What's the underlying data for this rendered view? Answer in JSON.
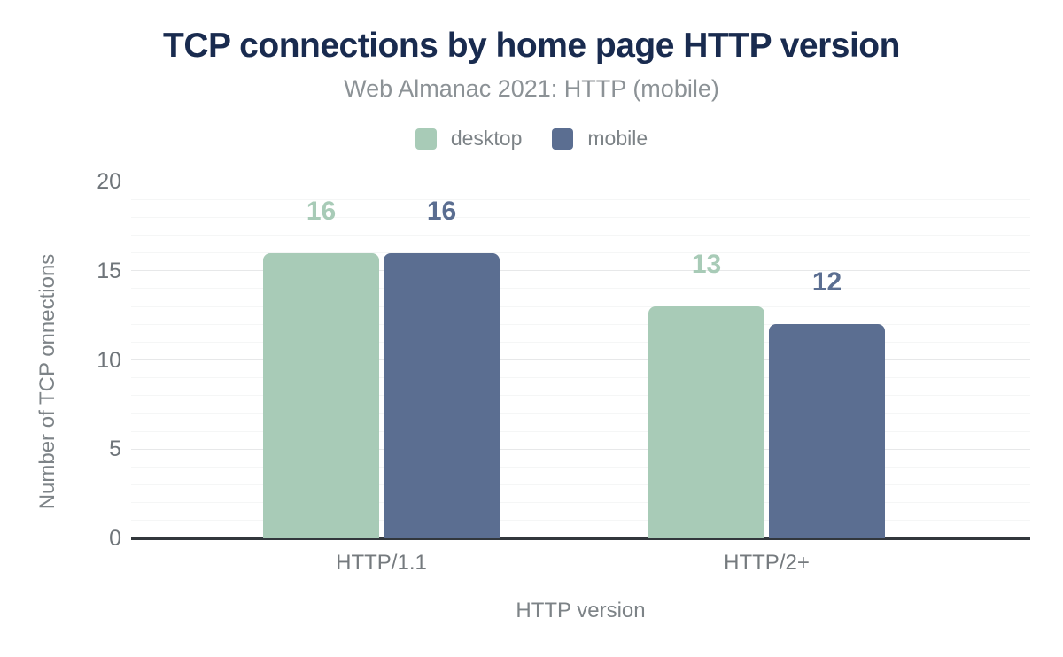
{
  "colors": {
    "background": "#ffffff",
    "title": "#192b4f",
    "subtitle": "#8c9296",
    "tick_labels": "#6f757a",
    "axis_titles": "#7d8387",
    "axis_line": "#32373c",
    "grid_major": "#e7e8e9",
    "grid_minor": "#f5f6f6",
    "desktop": "#a8cbb7",
    "mobile": "#5b6e91"
  },
  "chart_data": {
    "type": "bar",
    "title": "TCP connections by home page HTTP version",
    "subtitle": "Web Almanac 2021: HTTP (mobile)",
    "categories": [
      "HTTP/1.1",
      "HTTP/2+"
    ],
    "series": [
      {
        "name": "desktop",
        "color": "#a8cbb7",
        "values": [
          16,
          13
        ]
      },
      {
        "name": "mobile",
        "color": "#5b6e91",
        "values": [
          16,
          12
        ]
      }
    ],
    "xlabel": "HTTP version",
    "ylabel": "Number of TCP onnections",
    "ylim": [
      0,
      20
    ],
    "yticks": [
      0,
      5,
      10,
      15,
      20
    ],
    "minor_grid_step": 1,
    "grid": true,
    "value_labels": true,
    "legend_position": "top"
  }
}
